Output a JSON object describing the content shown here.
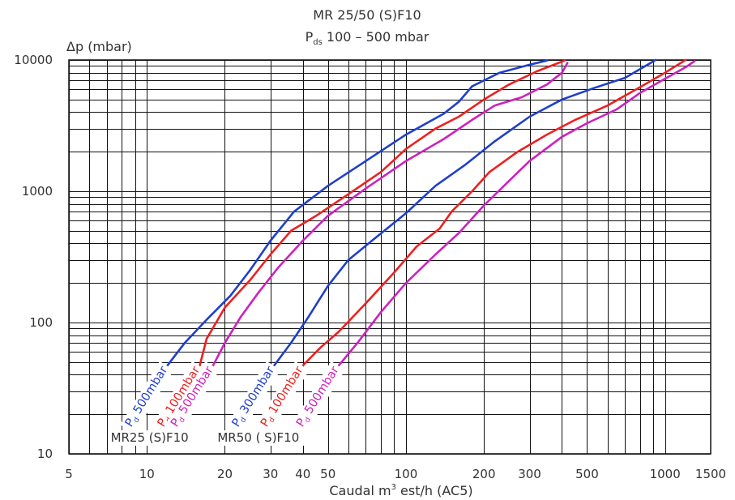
{
  "chart_data": {
    "type": "line",
    "title": "MR 25/50 (S)F10",
    "subtitle": {
      "prefix": "P",
      "sub": "ds",
      "rest": " 100 – 500 mbar"
    },
    "ylabel": "Δp (mbar)",
    "xlabel": {
      "before": "Caudal m",
      "sup": "3",
      "after": " est/h (AC5)"
    },
    "x_scale": "log",
    "y_scale": "log",
    "xlim": [
      5,
      1500
    ],
    "ylim": [
      10,
      10000
    ],
    "grid": true,
    "x_ticks": [
      {
        "value": 5,
        "label": "5"
      },
      {
        "value": 10,
        "label": "10"
      },
      {
        "value": 20,
        "label": "20"
      },
      {
        "value": 30,
        "label": "30"
      },
      {
        "value": 40,
        "label": "40"
      },
      {
        "value": 50,
        "label": "50"
      },
      {
        "value": 100,
        "label": "100"
      },
      {
        "value": 200,
        "label": "200"
      },
      {
        "value": 300,
        "label": "300"
      },
      {
        "value": 500,
        "label": "500"
      },
      {
        "value": 1000,
        "label": "1000"
      },
      {
        "value": 1500,
        "label": "1500"
      }
    ],
    "y_ticks": [
      {
        "value": 10,
        "label": "10"
      },
      {
        "value": 100,
        "label": "100"
      },
      {
        "value": 1000,
        "label": "1000"
      },
      {
        "value": 10000,
        "label": "10000"
      }
    ],
    "groups": [
      {
        "text": "MR25 (S)F10"
      },
      {
        "text": "MR50   ( S)F10"
      }
    ],
    "series": [
      {
        "group": 0,
        "label": {
          "p": "P",
          "sub": "d",
          "text": " 500mbar"
        },
        "color": "#1f3fcc",
        "points": [
          [
            12,
            47
          ],
          [
            14,
            70
          ],
          [
            17,
            105
          ],
          [
            21,
            160
          ],
          [
            25,
            250
          ],
          [
            30,
            420
          ],
          [
            37,
            700
          ],
          [
            50,
            1100
          ],
          [
            70,
            1700
          ],
          [
            100,
            2700
          ],
          [
            140,
            3900
          ],
          [
            160,
            4800
          ],
          [
            180,
            6300
          ],
          [
            230,
            8000
          ],
          [
            300,
            9200
          ],
          [
            350,
            9900
          ]
        ]
      },
      {
        "group": 0,
        "label": {
          "p": "P",
          "sub": "d",
          "text": " 100mbar"
        },
        "color": "#ee2020",
        "points": [
          [
            16,
            47
          ],
          [
            17,
            75
          ],
          [
            20,
            130
          ],
          [
            25,
            210
          ],
          [
            30,
            330
          ],
          [
            36,
            500
          ],
          [
            45,
            650
          ],
          [
            60,
            950
          ],
          [
            80,
            1400
          ],
          [
            100,
            2100
          ],
          [
            130,
            3000
          ],
          [
            160,
            3700
          ],
          [
            200,
            5000
          ],
          [
            250,
            6500
          ],
          [
            320,
            8200
          ],
          [
            410,
            9900
          ]
        ]
      },
      {
        "group": 0,
        "label": {
          "p": "P",
          "sub": "d",
          "text": " 500mbar"
        },
        "color": "#cc22bb",
        "points": [
          [
            18,
            47
          ],
          [
            20,
            70
          ],
          [
            23,
            110
          ],
          [
            27,
            170
          ],
          [
            32,
            260
          ],
          [
            40,
            420
          ],
          [
            50,
            650
          ],
          [
            70,
            1050
          ],
          [
            100,
            1700
          ],
          [
            140,
            2500
          ],
          [
            180,
            3500
          ],
          [
            220,
            4500
          ],
          [
            280,
            5200
          ],
          [
            350,
            6500
          ],
          [
            400,
            8000
          ],
          [
            420,
            9500
          ]
        ]
      },
      {
        "group": 1,
        "label": {
          "p": "P",
          "sub": "d",
          "text": " 300mbar"
        },
        "color": "#1f3fcc",
        "points": [
          [
            31,
            47
          ],
          [
            36,
            70
          ],
          [
            42,
            110
          ],
          [
            50,
            190
          ],
          [
            60,
            300
          ],
          [
            75,
            430
          ],
          [
            100,
            680
          ],
          [
            130,
            1100
          ],
          [
            170,
            1600
          ],
          [
            220,
            2400
          ],
          [
            300,
            3700
          ],
          [
            400,
            5000
          ],
          [
            530,
            6100
          ],
          [
            700,
            7300
          ],
          [
            800,
            8500
          ],
          [
            920,
            10000
          ]
        ]
      },
      {
        "group": 1,
        "label": {
          "p": "P",
          "sub": "d",
          "text": " 100mbar"
        },
        "color": "#ee2020",
        "points": [
          [
            40,
            47
          ],
          [
            47,
            65
          ],
          [
            55,
            85
          ],
          [
            70,
            140
          ],
          [
            90,
            240
          ],
          [
            110,
            380
          ],
          [
            135,
            520
          ],
          [
            150,
            700
          ],
          [
            180,
            1000
          ],
          [
            210,
            1400
          ],
          [
            270,
            2000
          ],
          [
            350,
            2700
          ],
          [
            450,
            3500
          ],
          [
            600,
            4500
          ],
          [
            800,
            6200
          ],
          [
            1000,
            8000
          ],
          [
            1200,
            10000
          ]
        ]
      },
      {
        "group": 1,
        "label": {
          "p": "P",
          "sub": "d",
          "text": " 500mbar"
        },
        "color": "#cc22bb",
        "points": [
          [
            55,
            47
          ],
          [
            65,
            70
          ],
          [
            80,
            120
          ],
          [
            100,
            200
          ],
          [
            130,
            330
          ],
          [
            160,
            480
          ],
          [
            200,
            780
          ],
          [
            250,
            1200
          ],
          [
            300,
            1700
          ],
          [
            400,
            2600
          ],
          [
            500,
            3300
          ],
          [
            650,
            4200
          ],
          [
            800,
            5600
          ],
          [
            1000,
            7200
          ],
          [
            1200,
            8800
          ],
          [
            1300,
            9800
          ]
        ]
      }
    ]
  }
}
